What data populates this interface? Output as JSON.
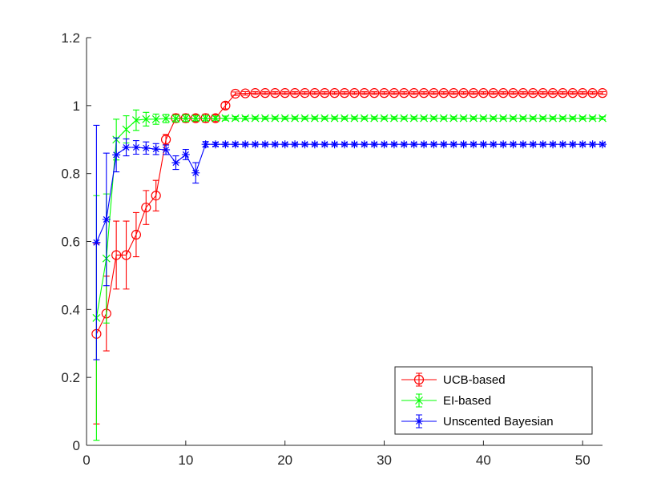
{
  "chart_data": {
    "type": "line",
    "title": "",
    "xlabel": "",
    "ylabel": "",
    "xlim": [
      0,
      52
    ],
    "ylim": [
      0,
      1.2
    ],
    "xticks": [
      0,
      10,
      20,
      30,
      40,
      50
    ],
    "yticks": [
      0,
      0.2,
      0.4,
      0.6,
      0.8,
      1,
      1.2
    ],
    "xtick_labels": [
      "0",
      "10",
      "20",
      "30",
      "40",
      "50"
    ],
    "ytick_labels": [
      "0",
      "0.2",
      "0.4",
      "0.6",
      "0.8",
      "1",
      "1.2"
    ],
    "grid": false,
    "legend_position": "bottom-right",
    "series": [
      {
        "name": "UCB-based",
        "color": "#ff0000",
        "marker": "circle",
        "x": [
          1,
          2,
          3,
          4,
          5,
          6,
          7,
          8,
          9,
          10,
          11,
          12,
          13,
          14,
          15,
          16,
          17,
          18,
          19,
          20,
          21,
          22,
          23,
          24,
          25,
          26,
          27,
          28,
          29,
          30,
          31,
          32,
          33,
          34,
          35,
          36,
          37,
          38,
          39,
          40,
          41,
          42,
          43,
          44,
          45,
          46,
          47,
          48,
          49,
          50,
          51,
          52
        ],
        "y": [
          0.328,
          0.388,
          0.56,
          0.56,
          0.62,
          0.7,
          0.735,
          0.9,
          0.963,
          0.963,
          0.963,
          0.963,
          0.963,
          1.0,
          1.035,
          1.036,
          1.037,
          1.037,
          1.037,
          1.037,
          1.037,
          1.037,
          1.037,
          1.037,
          1.037,
          1.037,
          1.037,
          1.037,
          1.037,
          1.037,
          1.037,
          1.037,
          1.037,
          1.037,
          1.037,
          1.037,
          1.037,
          1.037,
          1.037,
          1.037,
          1.037,
          1.037,
          1.037,
          1.037,
          1.037,
          1.037,
          1.037,
          1.037,
          1.037,
          1.037,
          1.037,
          1.037
        ],
        "err": [
          0.265,
          0.11,
          0.1,
          0.1,
          0.065,
          0.05,
          0.045,
          0.015,
          0.012,
          0.012,
          0.01,
          0.012,
          0.01,
          0.01,
          0.005,
          0.005,
          0.004,
          0.004,
          0.004,
          0.004,
          0.004,
          0.004,
          0.004,
          0.004,
          0.004,
          0.004,
          0.004,
          0.004,
          0.004,
          0.004,
          0.004,
          0.004,
          0.004,
          0.004,
          0.004,
          0.004,
          0.004,
          0.004,
          0.004,
          0.004,
          0.004,
          0.004,
          0.004,
          0.004,
          0.004,
          0.004,
          0.004,
          0.004,
          0.004,
          0.004,
          0.004,
          0.004
        ]
      },
      {
        "name": "EI-based",
        "color": "#00ff00",
        "marker": "x",
        "x": [
          1,
          2,
          3,
          4,
          5,
          6,
          7,
          8,
          9,
          10,
          11,
          12,
          13,
          14,
          15,
          16,
          17,
          18,
          19,
          20,
          21,
          22,
          23,
          24,
          25,
          26,
          27,
          28,
          29,
          30,
          31,
          32,
          33,
          34,
          35,
          36,
          37,
          38,
          39,
          40,
          41,
          42,
          43,
          44,
          45,
          46,
          47,
          48,
          49,
          50,
          51,
          52
        ],
        "y": [
          0.375,
          0.55,
          0.9,
          0.93,
          0.957,
          0.96,
          0.96,
          0.962,
          0.962,
          0.963,
          0.963,
          0.963,
          0.963,
          0.963,
          0.963,
          0.963,
          0.963,
          0.963,
          0.963,
          0.963,
          0.963,
          0.963,
          0.963,
          0.963,
          0.963,
          0.963,
          0.963,
          0.963,
          0.963,
          0.963,
          0.963,
          0.963,
          0.963,
          0.963,
          0.963,
          0.963,
          0.963,
          0.963,
          0.963,
          0.963,
          0.963,
          0.963,
          0.963,
          0.963,
          0.963,
          0.963,
          0.963,
          0.963,
          0.963,
          0.963,
          0.963,
          0.963
        ],
        "err": [
          0.36,
          0.19,
          0.06,
          0.04,
          0.03,
          0.02,
          0.015,
          0.012,
          0.01,
          0.01,
          0.008,
          0.008,
          0.006,
          0.006,
          0.005,
          0.005,
          0.004,
          0.004,
          0.004,
          0.004,
          0.004,
          0.004,
          0.004,
          0.004,
          0.004,
          0.004,
          0.004,
          0.004,
          0.004,
          0.004,
          0.004,
          0.004,
          0.004,
          0.004,
          0.004,
          0.004,
          0.004,
          0.004,
          0.004,
          0.004,
          0.004,
          0.004,
          0.004,
          0.004,
          0.004,
          0.004,
          0.004,
          0.004,
          0.004,
          0.004,
          0.004,
          0.004
        ]
      },
      {
        "name": "Unscented Bayesian",
        "color": "#0000ff",
        "marker": "star",
        "x": [
          1,
          2,
          3,
          4,
          5,
          6,
          7,
          8,
          9,
          10,
          11,
          12,
          13,
          14,
          15,
          16,
          17,
          18,
          19,
          20,
          21,
          22,
          23,
          24,
          25,
          26,
          27,
          28,
          29,
          30,
          31,
          32,
          33,
          34,
          35,
          36,
          37,
          38,
          39,
          40,
          41,
          42,
          43,
          44,
          45,
          46,
          47,
          48,
          49,
          50,
          51,
          52
        ],
        "y": [
          0.597,
          0.665,
          0.855,
          0.877,
          0.877,
          0.875,
          0.872,
          0.87,
          0.832,
          0.856,
          0.802,
          0.886,
          0.886,
          0.886,
          0.886,
          0.886,
          0.886,
          0.886,
          0.886,
          0.886,
          0.886,
          0.886,
          0.886,
          0.886,
          0.886,
          0.886,
          0.886,
          0.886,
          0.886,
          0.886,
          0.886,
          0.886,
          0.886,
          0.886,
          0.886,
          0.886,
          0.886,
          0.886,
          0.886,
          0.886,
          0.886,
          0.886,
          0.886,
          0.886,
          0.886,
          0.886,
          0.886,
          0.886,
          0.886,
          0.886,
          0.886,
          0.886
        ],
        "err": [
          0.345,
          0.195,
          0.05,
          0.025,
          0.02,
          0.018,
          0.016,
          0.014,
          0.02,
          0.015,
          0.03,
          0.008,
          0.006,
          0.005,
          0.005,
          0.004,
          0.004,
          0.004,
          0.004,
          0.004,
          0.004,
          0.004,
          0.004,
          0.004,
          0.004,
          0.004,
          0.004,
          0.004,
          0.004,
          0.004,
          0.004,
          0.004,
          0.004,
          0.004,
          0.004,
          0.004,
          0.004,
          0.004,
          0.004,
          0.004,
          0.004,
          0.004,
          0.004,
          0.004,
          0.004,
          0.004,
          0.004,
          0.004,
          0.004,
          0.004,
          0.004,
          0.004
        ]
      }
    ]
  }
}
